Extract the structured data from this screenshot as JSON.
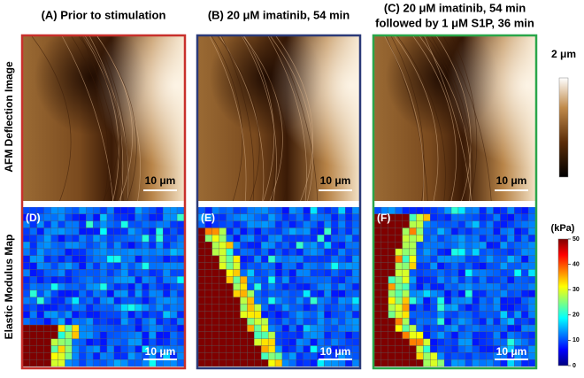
{
  "side_labels": [
    "AFM Deflection Image",
    "Elastic Modulus Map"
  ],
  "panels": [
    {
      "title": [
        "(A) Prior to stimulation"
      ],
      "scale_bar": "10 μm",
      "map_label": "(D)",
      "map_scale_bar": "10 μm",
      "border_color": "#c8302c"
    },
    {
      "title": [
        "(B) 20 μM imatinib, 54 min"
      ],
      "scale_bar": "10 μm",
      "map_label": "(E)",
      "map_scale_bar": "10 μm",
      "border_color": "#2b3a78"
    },
    {
      "title": [
        "(C) 20 μM imatinib, 54 min",
        "followed by 1 μM S1P, 36 min"
      ],
      "scale_bar": "10 μm",
      "map_label": "(F)",
      "map_scale_bar": "10 μm",
      "border_color": "#2aa64a"
    }
  ],
  "afm_colorbar": {
    "label": "2 μm"
  },
  "modulus_colorbar": {
    "label": "(kPa)",
    "ticks": [
      0,
      10,
      20,
      30,
      40,
      50
    ]
  }
}
